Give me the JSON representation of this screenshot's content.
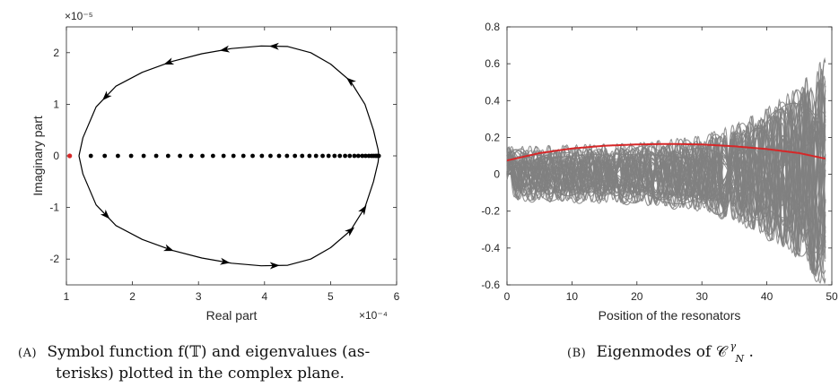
{
  "chart_data": [
    {
      "type": "scatter",
      "panel": "a",
      "xlabel": "Real part",
      "ylabel": "Imaginary part",
      "x_exponent": "×10⁻⁴",
      "y_exponent": "×10⁻⁵",
      "xlim": [
        1,
        6
      ],
      "ylim": [
        -2.5,
        2.5
      ],
      "xticks": [
        "1",
        "2",
        "3",
        "4",
        "5",
        "6"
      ],
      "yticks": [
        "-2",
        "-1",
        "0",
        "1",
        "2"
      ],
      "grid": false,
      "symbol_curve": {
        "color": "#000000",
        "points": [
          [
            1.19,
            0
          ],
          [
            1.25,
            0.35
          ],
          [
            1.45,
            0.95
          ],
          [
            1.75,
            1.35
          ],
          [
            2.15,
            1.62
          ],
          [
            2.6,
            1.83
          ],
          [
            3.05,
            1.98
          ],
          [
            3.5,
            2.08
          ],
          [
            3.95,
            2.13
          ],
          [
            4.35,
            2.12
          ],
          [
            4.7,
            2.0
          ],
          [
            5.0,
            1.78
          ],
          [
            5.3,
            1.45
          ],
          [
            5.52,
            1.0
          ],
          [
            5.65,
            0.5
          ],
          [
            5.72,
            0.12
          ],
          [
            5.73,
            0
          ]
        ],
        "arrow_points_x": [
          4.15,
          3.4,
          2.55,
          1.6,
          5.3,
          5.5
        ]
      },
      "eigenvalues_imag": 0,
      "eigenvalues_real_first": 1.05,
      "eigenvalues_real": [
        1.37,
        1.58,
        1.78,
        1.98,
        2.17,
        2.36,
        2.54,
        2.72,
        2.89,
        3.06,
        3.22,
        3.38,
        3.53,
        3.68,
        3.82,
        3.96,
        4.09,
        4.22,
        4.34,
        4.46,
        4.57,
        4.68,
        4.78,
        4.88,
        4.97,
        5.06,
        5.14,
        5.22,
        5.29,
        5.36,
        5.42,
        5.48,
        5.53,
        5.58,
        5.62,
        5.65,
        5.68,
        5.7,
        5.72,
        5.73
      ],
      "first_eigenvalue_color": "#d62728",
      "caption_label": "(A)",
      "caption_line1": "Symbol function f(𝕋) and eigenvalues (as-",
      "caption_line2": "terisks) plotted in the complex plane."
    },
    {
      "type": "line",
      "panel": "b",
      "xlabel": "Position of the resonators",
      "ylabel": "",
      "xlim": [
        0,
        50
      ],
      "ylim": [
        -0.6,
        0.8
      ],
      "xticks": [
        "0",
        "10",
        "20",
        "30",
        "40",
        "50"
      ],
      "yticks": [
        "-0.6",
        "-0.4",
        "-0.2",
        "0",
        "0.2",
        "0.4",
        "0.6",
        "0.8"
      ],
      "grid": false,
      "n_modes": 50,
      "mode_color": "#808080",
      "highlight_color": "#d62728",
      "highlight_mode": {
        "x": [
          0,
          5,
          10,
          15,
          20,
          25,
          30,
          35,
          40,
          45,
          49
        ],
        "y": [
          0.075,
          0.115,
          0.14,
          0.155,
          0.162,
          0.165,
          0.162,
          0.152,
          0.137,
          0.115,
          0.085
        ]
      },
      "envelope": {
        "x": [
          0,
          10,
          20,
          30,
          35,
          40,
          45,
          48,
          49
        ],
        "y": [
          0.12,
          0.13,
          0.14,
          0.18,
          0.24,
          0.33,
          0.45,
          0.58,
          0.6
        ]
      },
      "caption_label": "(B)",
      "caption_text": "Eigenmodes of 𝒞",
      "caption_super": "γ",
      "caption_sub": "N"
    }
  ]
}
